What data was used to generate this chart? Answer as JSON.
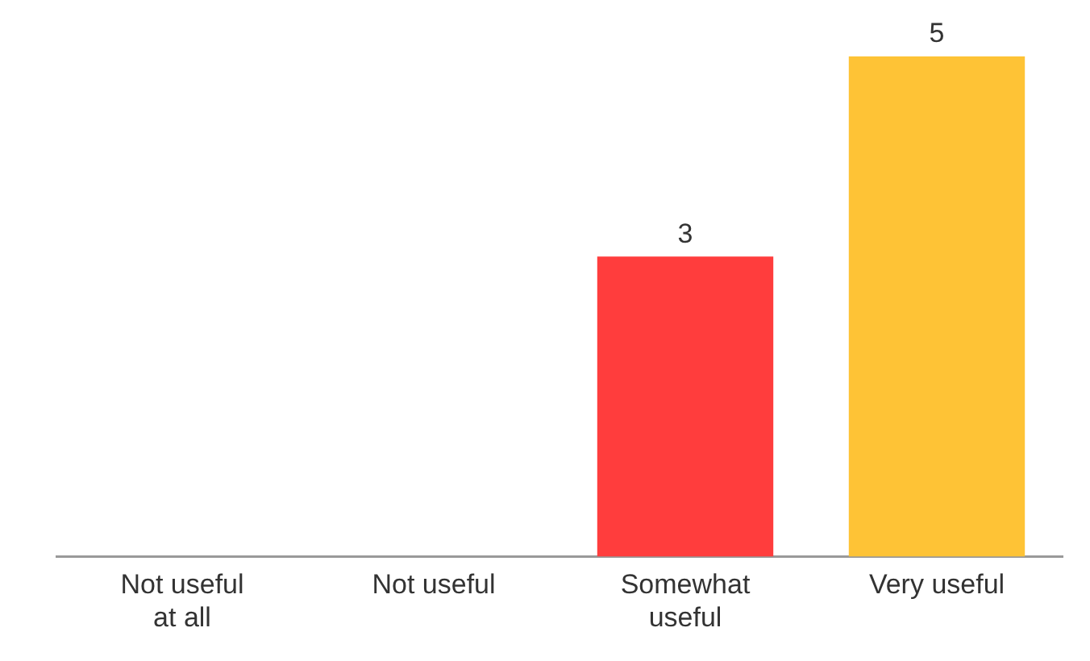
{
  "chart_data": {
    "type": "bar",
    "categories": [
      "Not useful at all",
      "Not useful",
      "Somewhat useful",
      "Very useful"
    ],
    "values": [
      0,
      0,
      3,
      5
    ],
    "colors": [
      "#ff3d3d",
      "#ff3d3d",
      "#ff3d3d",
      "#fec336"
    ],
    "value_labels": [
      null,
      null,
      "3",
      "5"
    ],
    "legend": false,
    "grid": false
  }
}
